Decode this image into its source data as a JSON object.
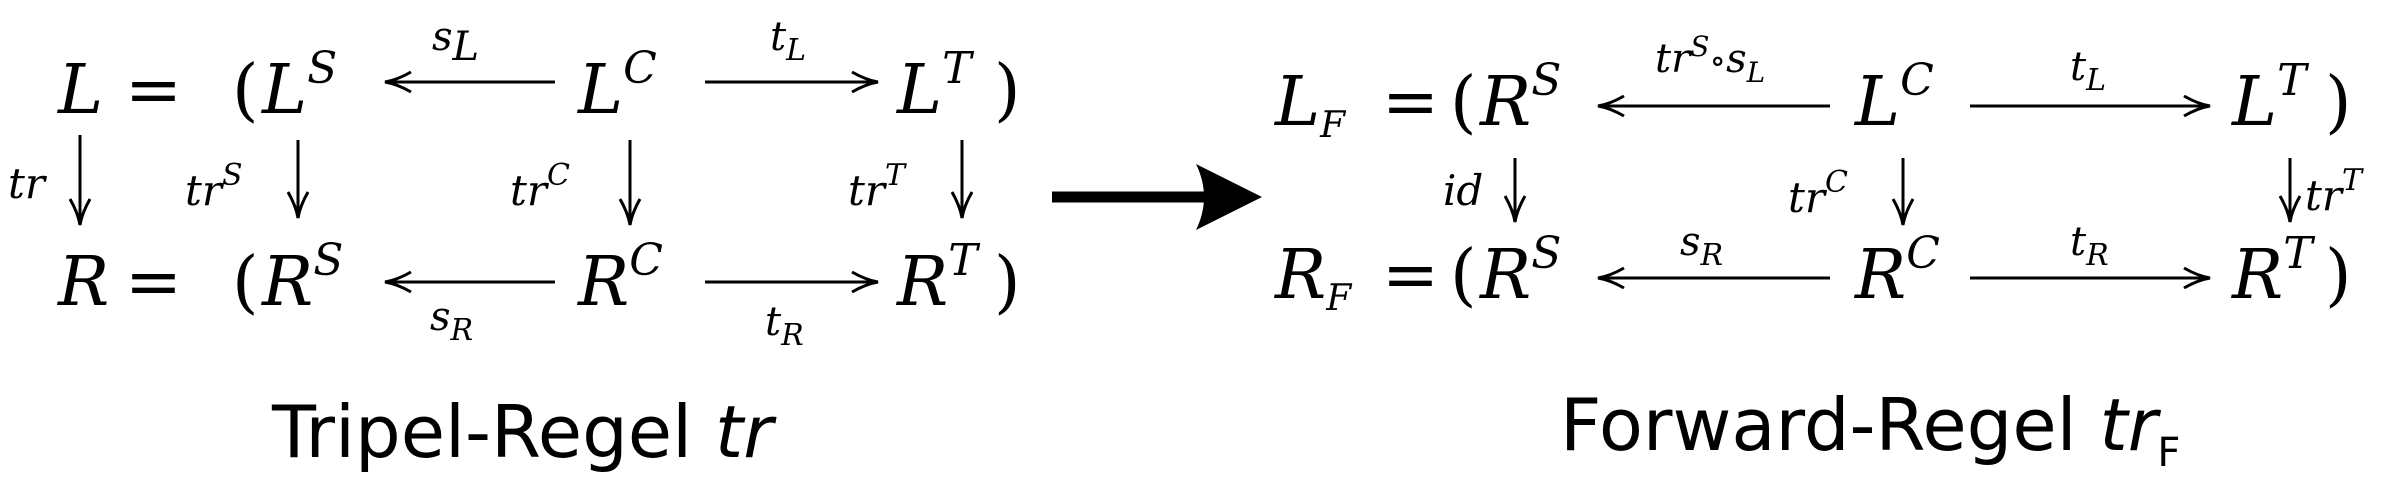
{
  "left_diagram": {
    "row1": {
      "lhs": "L",
      "eq": "=",
      "open": "(",
      "ls": "L",
      "ls_sup": "S",
      "lc": "L",
      "lc_sup": "C",
      "lt": "L",
      "lt_sup": "T",
      "close": ")"
    },
    "row2": {
      "lhs": "R",
      "eq": "=",
      "open": "(",
      "rs": "R",
      "rs_sup": "S",
      "rc": "R",
      "rc_sup": "C",
      "rt": "R",
      "rt_sup": "T",
      "close": ")"
    },
    "arrow_s_top": {
      "base": "s",
      "sub": "L"
    },
    "arrow_t_top": {
      "base": "t",
      "sub": "L"
    },
    "arrow_s_bottom": {
      "base": "s",
      "sub": "R"
    },
    "arrow_t_bottom": {
      "base": "t",
      "sub": "R"
    },
    "vlabel_tr": "tr",
    "vlabel_trS": {
      "base": "tr",
      "sup": "S"
    },
    "vlabel_trC": {
      "base": "tr",
      "sup": "C"
    },
    "vlabel_trT": {
      "base": "tr",
      "sup": "T"
    }
  },
  "right_diagram": {
    "row1": {
      "lhs": "L",
      "lhs_sub": "F",
      "eq": "=",
      "open": "(",
      "rs": "R",
      "rs_sup": "S",
      "lc": "L",
      "lc_sup": "C",
      "lt": "L",
      "lt_sup": "T",
      "close": ")"
    },
    "row2": {
      "lhs": "R",
      "lhs_sub": "F",
      "eq": "=",
      "open": "(",
      "rs": "R",
      "rs_sup": "S",
      "rc": "R",
      "rc_sup": "C",
      "rt": "R",
      "rt_sup": "T",
      "close": ")"
    },
    "arrow_s_top": {
      "base": "tr",
      "sup": "S",
      "op": "∘",
      "s": "s",
      "sub": "L"
    },
    "arrow_t_top": {
      "base": "t",
      "sub": "L"
    },
    "arrow_s_bottom": {
      "base": "s",
      "sub": "R"
    },
    "arrow_t_bottom": {
      "base": "t",
      "sub": "R"
    },
    "vlabel_id": "id",
    "vlabel_trC": {
      "base": "tr",
      "sup": "C"
    },
    "vlabel_trT": {
      "base": "tr",
      "sup": "T"
    }
  },
  "captions": {
    "left": {
      "text": "Tripel-Regel ",
      "italic": "tr"
    },
    "right": {
      "text": "Forward-Regel ",
      "italic": "tr",
      "sub": "F"
    }
  }
}
